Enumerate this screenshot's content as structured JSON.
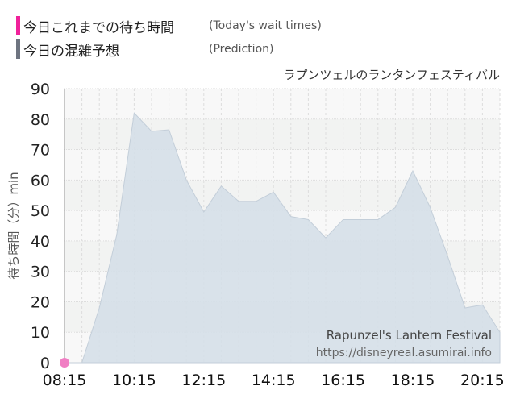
{
  "legend": [
    {
      "label_ja": "今日これまでの待ち時間",
      "label_en": "(Today's wait times)",
      "color": "#f0219a"
    },
    {
      "label_ja": "今日の混雑予想",
      "label_en": "(Prediction)",
      "color": "#6e7480"
    }
  ],
  "chart_data": {
    "type": "area",
    "title": "ラプンツェルのランタンフェスティバル",
    "ylabel": "待ち時間（分）min",
    "ylim": [
      0,
      90
    ],
    "yticks": [
      "0",
      "10",
      "20",
      "30",
      "40",
      "50",
      "60",
      "70",
      "80",
      "90"
    ],
    "xticks": [
      "08:15",
      "10:15",
      "12:15",
      "14:15",
      "16:15",
      "18:15",
      "20:15"
    ],
    "xrange": [
      "08:15",
      "20:45"
    ],
    "grid": true,
    "watermark": [
      "Rapunzel's Lantern Festival",
      "https://disneyreal.asumirai.info"
    ],
    "series": [
      {
        "name": "今日の混雑予想",
        "color": "#d5dfe8",
        "x": [
          "08:15",
          "08:45",
          "09:15",
          "09:45",
          "10:15",
          "10:45",
          "11:15",
          "11:45",
          "12:15",
          "12:45",
          "13:15",
          "13:45",
          "14:15",
          "14:45",
          "15:15",
          "15:45",
          "16:15",
          "16:45",
          "17:15",
          "17:45",
          "18:15",
          "18:45",
          "19:15",
          "19:45",
          "20:15",
          "20:45"
        ],
        "values": [
          0,
          0,
          18,
          42,
          82,
          76,
          76.5,
          60,
          49.5,
          58,
          53,
          53,
          56,
          48,
          47,
          41,
          47,
          47,
          47,
          51,
          63,
          51,
          35,
          18,
          19,
          10
        ]
      },
      {
        "name": "今日これまでの待ち時間",
        "color": "#f07ec3",
        "x": [
          "08:15"
        ],
        "values": [
          0
        ]
      }
    ]
  }
}
